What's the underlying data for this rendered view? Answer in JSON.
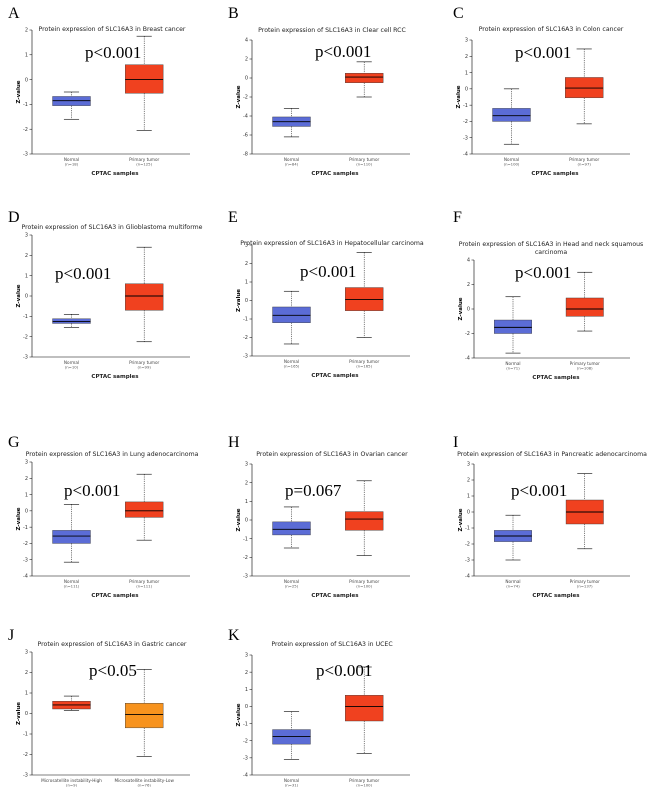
{
  "chart_data": [
    {
      "letter": "A",
      "type": "box",
      "title": [
        "Protein expression of SLC16A3 in Breast cancer"
      ],
      "pvalue": "p<0.001",
      "ylabel": "Z-value",
      "xlabel": "CPTAC samples",
      "ylim": [
        -3,
        2
      ],
      "yticks": [
        -3,
        -2,
        -1,
        0,
        1,
        2
      ],
      "yticklabels": [
        "-3",
        "-2",
        "-1",
        "0",
        "1",
        "2"
      ],
      "boxes": [
        {
          "label": "Normal",
          "n": "(n=18)",
          "color": "#5b6cd6",
          "whisker_low": -1.6,
          "q1": -1.05,
          "median": -0.85,
          "q3": -0.68,
          "whisker_high": -0.5
        },
        {
          "label": "Primary tumor",
          "n": "(n=125)",
          "color": "#f0411f",
          "whisker_low": -2.05,
          "q1": -0.55,
          "median": 0.0,
          "q3": 0.6,
          "whisker_high": 1.75
        }
      ]
    },
    {
      "letter": "B",
      "type": "box",
      "title": [
        "Protein expression of SLC16A3 in Clear cell RCC"
      ],
      "pvalue": "p<0.001",
      "ylabel": "Z-value",
      "xlabel": "CPTAC samples",
      "ylim": [
        -8,
        4
      ],
      "yticks": [
        -8,
        -6,
        -4,
        -2,
        0,
        2,
        4
      ],
      "yticklabels": [
        "-8",
        "-6",
        "-4",
        "-2",
        "0",
        "2",
        "4"
      ],
      "boxes": [
        {
          "label": "Normal",
          "n": "(n=84)",
          "color": "#5b6cd6",
          "whisker_low": -6.2,
          "q1": -5.1,
          "median": -4.6,
          "q3": -4.1,
          "whisker_high": -3.2
        },
        {
          "label": "Primary tumor",
          "n": "(n=110)",
          "color": "#f0411f",
          "whisker_low": -2.0,
          "q1": -0.5,
          "median": 0.1,
          "q3": 0.5,
          "whisker_high": 1.7
        }
      ]
    },
    {
      "letter": "C",
      "type": "box",
      "title": [
        "Protein expression of SLC16A3 in Colon cancer"
      ],
      "pvalue": "p<0.001",
      "ylabel": "Z-value",
      "xlabel": "CPTAC samples",
      "ylim": [
        -4,
        3
      ],
      "yticks": [
        -4,
        -3,
        -2,
        -1,
        0,
        1,
        2,
        3
      ],
      "yticklabels": [
        "-4",
        "-3",
        "-2",
        "-1",
        "0",
        "1",
        "2",
        "3"
      ],
      "boxes": [
        {
          "label": "Normal",
          "n": "(n=100)",
          "color": "#5b6cd6",
          "whisker_low": -3.4,
          "q1": -2.0,
          "median": -1.65,
          "q3": -1.2,
          "whisker_high": 0.0
        },
        {
          "label": "Primary tumor",
          "n": "(n=97)",
          "color": "#f0411f",
          "whisker_low": -2.15,
          "q1": -0.55,
          "median": 0.05,
          "q3": 0.7,
          "whisker_high": 2.45
        }
      ]
    },
    {
      "letter": "D",
      "type": "box",
      "title": [
        "Protein expression of SLC16A3 in Glioblastoma multiforme"
      ],
      "pvalue": "p<0.001",
      "ylabel": "Z-value",
      "xlabel": "CPTAC samples",
      "ylim": [
        -3,
        3
      ],
      "yticks": [
        -3,
        -2,
        -1,
        0,
        1,
        2,
        3
      ],
      "yticklabels": [
        "-3",
        "-2",
        "-1",
        "0",
        "1",
        "2",
        "3"
      ],
      "boxes": [
        {
          "label": "Normal",
          "n": "(n=10)",
          "color": "#5b6cd6",
          "whisker_low": -1.55,
          "q1": -1.35,
          "median": -1.25,
          "q3": -1.12,
          "whisker_high": -0.9
        },
        {
          "label": "Primary tumor",
          "n": "(n=99)",
          "color": "#f0411f",
          "whisker_low": -2.25,
          "q1": -0.7,
          "median": 0.0,
          "q3": 0.6,
          "whisker_high": 2.4
        }
      ]
    },
    {
      "letter": "E",
      "type": "box",
      "title": [
        "Protein expression of SLC16A3 in Hepatocellular carcinoma"
      ],
      "pvalue": "p<0.001",
      "ylabel": "Z-value",
      "xlabel": "CPTAC samples",
      "ylim": [
        -3,
        3
      ],
      "yticks": [
        -3,
        -2,
        -1,
        0,
        1,
        2,
        3
      ],
      "yticklabels": [
        "-3",
        "-2",
        "-1",
        "0",
        "1",
        "2",
        "3"
      ],
      "boxes": [
        {
          "label": "Normal",
          "n": "(n=165)",
          "color": "#5b6cd6",
          "whisker_low": -2.35,
          "q1": -1.2,
          "median": -0.8,
          "q3": -0.35,
          "whisker_high": 0.5
        },
        {
          "label": "Primary tumor",
          "n": "(n=165)",
          "color": "#f0411f",
          "whisker_low": -2.0,
          "q1": -0.55,
          "median": 0.05,
          "q3": 0.7,
          "whisker_high": 2.6
        }
      ]
    },
    {
      "letter": "F",
      "type": "box",
      "title": [
        "Protein expression of SLC16A3 in Head and neck squamous",
        "carcinoma"
      ],
      "pvalue": "p<0.001",
      "ylabel": "Z-value",
      "xlabel": "CPTAC samples",
      "ylim": [
        -4,
        4
      ],
      "yticks": [
        -4,
        -2,
        0,
        2,
        4
      ],
      "yticklabels": [
        "-4",
        "-2",
        "0",
        "2",
        "4"
      ],
      "boxes": [
        {
          "label": "Normal",
          "n": "(n=71)",
          "color": "#5b6cd6",
          "whisker_low": -3.6,
          "q1": -2.0,
          "median": -1.5,
          "q3": -0.9,
          "whisker_high": 1.0
        },
        {
          "label": "Primary tumor",
          "n": "(n=108)",
          "color": "#f0411f",
          "whisker_low": -1.8,
          "q1": -0.6,
          "median": 0.0,
          "q3": 0.9,
          "whisker_high": 3.0
        }
      ]
    },
    {
      "letter": "G",
      "type": "box",
      "title": [
        "Protein expression of SLC16A3 in Lung adenocarcinoma"
      ],
      "pvalue": "p<0.001",
      "ylabel": "Z-value",
      "xlabel": "CPTAC samples",
      "ylim": [
        -4,
        3
      ],
      "yticks": [
        -4,
        -3,
        -2,
        -1,
        0,
        1,
        2,
        3
      ],
      "yticklabels": [
        "-4",
        "-3",
        "-2",
        "-1",
        "0",
        "1",
        "2",
        "3"
      ],
      "boxes": [
        {
          "label": "Normal",
          "n": "(n=111)",
          "color": "#5b6cd6",
          "whisker_low": -3.15,
          "q1": -2.0,
          "median": -1.55,
          "q3": -1.2,
          "whisker_high": 0.4
        },
        {
          "label": "Primary tumor",
          "n": "(n=111)",
          "color": "#f0411f",
          "whisker_low": -1.8,
          "q1": -0.4,
          "median": 0.0,
          "q3": 0.55,
          "whisker_high": 2.25
        }
      ]
    },
    {
      "letter": "H",
      "type": "box",
      "title": [
        "Protein expression of SLC16A3 in Ovarian cancer"
      ],
      "pvalue": "p=0.067",
      "ylabel": "Z-value",
      "xlabel": "CPTAC samples",
      "ylim": [
        -3,
        3
      ],
      "yticks": [
        -3,
        -2,
        -1,
        0,
        1,
        2,
        3
      ],
      "yticklabels": [
        "-3",
        "-2",
        "-1",
        "0",
        "1",
        "2",
        "3"
      ],
      "boxes": [
        {
          "label": "Normal",
          "n": "(n=25)",
          "color": "#5b6cd6",
          "whisker_low": -1.5,
          "q1": -0.8,
          "median": -0.5,
          "q3": -0.1,
          "whisker_high": 0.7
        },
        {
          "label": "Primary tumor",
          "n": "(n=100)",
          "color": "#f0411f",
          "whisker_low": -1.9,
          "q1": -0.55,
          "median": 0.05,
          "q3": 0.45,
          "whisker_high": 2.1
        }
      ]
    },
    {
      "letter": "I",
      "type": "box",
      "title": [
        "Protein expression of SLC16A3 in Pancreatic adenocarcinoma"
      ],
      "pvalue": "p<0.001",
      "ylabel": "Z-value",
      "xlabel": "CPTAC samples",
      "ylim": [
        -4,
        3
      ],
      "yticks": [
        -4,
        -3,
        -2,
        -1,
        0,
        1,
        2,
        3
      ],
      "yticklabels": [
        "-4",
        "-3",
        "-2",
        "-1",
        "0",
        "1",
        "2",
        "3"
      ],
      "boxes": [
        {
          "label": "Normal",
          "n": "(n=74)",
          "color": "#5b6cd6",
          "whisker_low": -3.0,
          "q1": -1.85,
          "median": -1.5,
          "q3": -1.15,
          "whisker_high": -0.2
        },
        {
          "label": "Primary tumor",
          "n": "(n=137)",
          "color": "#f0411f",
          "whisker_low": -2.3,
          "q1": -0.75,
          "median": 0.0,
          "q3": 0.75,
          "whisker_high": 2.4
        }
      ]
    },
    {
      "letter": "J",
      "type": "box",
      "title": [
        "Protein expression of SLC16A3 in Gastric cancer"
      ],
      "pvalue": "p<0.05",
      "ylabel": "Z-value",
      "xlabel": "CPTAC samples",
      "ylim": [
        -3,
        3
      ],
      "yticks": [
        -3,
        -2,
        -1,
        0,
        1,
        2,
        3
      ],
      "yticklabels": [
        "-3",
        "-2",
        "-1",
        "0",
        "1",
        "2",
        "3"
      ],
      "boxes": [
        {
          "label": "Microsatellite instability-High",
          "n": "(n=9)",
          "color": "#f0411f",
          "whisker_low": 0.15,
          "q1": 0.22,
          "median": 0.42,
          "q3": 0.6,
          "whisker_high": 0.85
        },
        {
          "label": "Microsatellite instability-Low",
          "n": "(n=76)",
          "color": "#f7931e",
          "whisker_low": -2.1,
          "q1": -0.7,
          "median": -0.05,
          "q3": 0.5,
          "whisker_high": 2.15
        }
      ]
    },
    {
      "letter": "K",
      "type": "box",
      "title": [
        "Protein expression of SLC16A3 in UCEC"
      ],
      "pvalue": "p<0.001",
      "ylabel": "Z-value",
      "xlabel": "CPTAC samples",
      "ylim": [
        -4,
        3
      ],
      "yticks": [
        -4,
        -3,
        -2,
        -1,
        0,
        1,
        2,
        3
      ],
      "yticklabels": [
        "-4",
        "-3",
        "-2",
        "-1",
        "0",
        "1",
        "2",
        "3"
      ],
      "boxes": [
        {
          "label": "Normal",
          "n": "(n=31)",
          "color": "#5b6cd6",
          "whisker_low": -3.1,
          "q1": -2.2,
          "median": -1.75,
          "q3": -1.35,
          "whisker_high": -0.3
        },
        {
          "label": "Primary tumor",
          "n": "(n=100)",
          "color": "#f0411f",
          "whisker_low": -2.75,
          "q1": -0.85,
          "median": 0.0,
          "q3": 0.65,
          "whisker_high": 2.3
        }
      ]
    }
  ]
}
